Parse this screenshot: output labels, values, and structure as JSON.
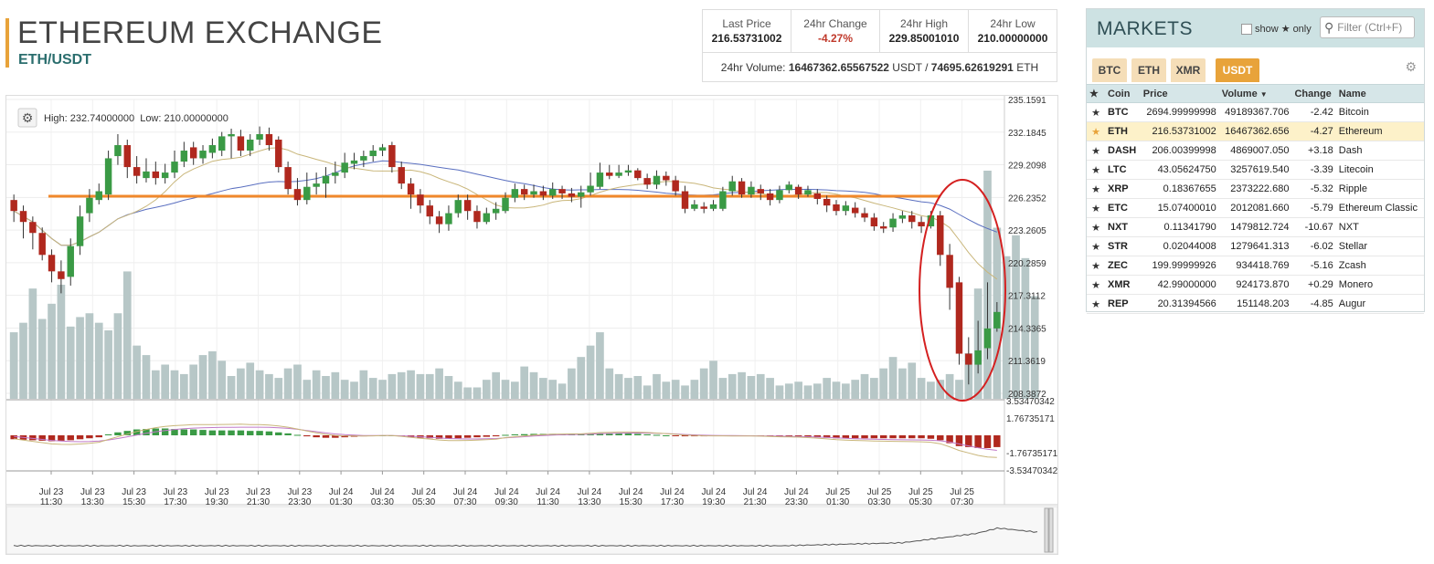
{
  "header": {
    "title": "ETHEREUM EXCHANGE",
    "pair": "ETH/USDT"
  },
  "stats": {
    "last_price_label": "Last Price",
    "last_price": "216.53731002",
    "change_label": "24hr Change",
    "change": "-4.27%",
    "high_label": "24hr High",
    "high": "229.85001010",
    "low_label": "24hr Low",
    "low": "210.00000000",
    "volume_prefix": "24hr Volume: ",
    "volume_usdt": "16467362.65567522",
    "volume_usdt_unit": " USDT / ",
    "volume_eth": "74695.62619291",
    "volume_eth_unit": " ETH"
  },
  "chart": {
    "info": "High: 232.74000000  Low: 210.00000000",
    "price_axis": [
      "235.1591",
      "232.1845",
      "229.2098",
      "226.2352",
      "223.2605",
      "220.2859",
      "217.3112",
      "214.3365",
      "211.3619",
      "208.3872"
    ],
    "macd_axis": [
      "3.53470342",
      "1.76735171",
      "-1.76735171",
      "-3.53470342"
    ],
    "time_labels": [
      [
        "Jul 23",
        "11:30"
      ],
      [
        "Jul 23",
        "13:30"
      ],
      [
        "Jul 23",
        "15:30"
      ],
      [
        "Jul 23",
        "17:30"
      ],
      [
        "Jul 23",
        "19:30"
      ],
      [
        "Jul 23",
        "21:30"
      ],
      [
        "Jul 23",
        "23:30"
      ],
      [
        "Jul 24",
        "01:30"
      ],
      [
        "Jul 24",
        "03:30"
      ],
      [
        "Jul 24",
        "05:30"
      ],
      [
        "Jul 24",
        "07:30"
      ],
      [
        "Jul 24",
        "09:30"
      ],
      [
        "Jul 24",
        "11:30"
      ],
      [
        "Jul 24",
        "13:30"
      ],
      [
        "Jul 24",
        "15:30"
      ],
      [
        "Jul 24",
        "17:30"
      ],
      [
        "Jul 24",
        "19:30"
      ],
      [
        "Jul 24",
        "21:30"
      ],
      [
        "Jul 24",
        "23:30"
      ],
      [
        "Jul 25",
        "01:30"
      ],
      [
        "Jul 25",
        "03:30"
      ],
      [
        "Jul 25",
        "05:30"
      ],
      [
        "Jul 25",
        "07:30"
      ]
    ],
    "colors": {
      "up": "#3a9a45",
      "down": "#b0281e",
      "support_line": "#f0882b",
      "highlight": "#d42020",
      "volume": "#b7c7c7"
    },
    "candles": [
      [
        226.0,
        225.0,
        226.5,
        224.0
      ],
      [
        225.0,
        224.0,
        225.5,
        222.5
      ],
      [
        224.0,
        223.0,
        224.5,
        221.5
      ],
      [
        223.0,
        221.0,
        223.5,
        220.5
      ],
      [
        221.0,
        219.5,
        221.5,
        218.5
      ],
      [
        219.5,
        218.8,
        220.5,
        217.5
      ],
      [
        219.0,
        221.8,
        222.5,
        218.2
      ],
      [
        221.8,
        224.5,
        225.5,
        221.0
      ],
      [
        224.8,
        226.2,
        227.0,
        224.0
      ],
      [
        226.0,
        226.8,
        227.5,
        225.6
      ],
      [
        226.5,
        229.8,
        230.5,
        226.0
      ],
      [
        230.0,
        231.0,
        232.0,
        229.2
      ],
      [
        231.0,
        229.0,
        231.5,
        228.0
      ],
      [
        229.0,
        228.2,
        230.0,
        227.5
      ],
      [
        228.0,
        228.6,
        229.8,
        227.6
      ],
      [
        228.6,
        228.0,
        229.5,
        227.4
      ],
      [
        228.0,
        228.5,
        229.3,
        227.5
      ],
      [
        228.5,
        229.5,
        230.5,
        228.0
      ],
      [
        229.5,
        230.5,
        231.3,
        229.0
      ],
      [
        230.8,
        229.8,
        231.3,
        229.2
      ],
      [
        229.8,
        230.5,
        231.0,
        229.3
      ],
      [
        230.3,
        231.0,
        231.6,
        229.8
      ],
      [
        230.5,
        231.8,
        232.2,
        230.0
      ],
      [
        231.8,
        232.0,
        232.5,
        229.8
      ],
      [
        231.8,
        230.5,
        232.4,
        230.0
      ],
      [
        230.5,
        231.5,
        232.0,
        230.0
      ],
      [
        231.5,
        232.0,
        232.7,
        231.0
      ],
      [
        232.0,
        231.0,
        232.6,
        230.5
      ],
      [
        231.5,
        229.0,
        231.8,
        228.5
      ],
      [
        229.0,
        227.0,
        229.5,
        226.5
      ],
      [
        227.0,
        226.0,
        228.0,
        225.5
      ],
      [
        226.0,
        227.2,
        228.5,
        225.6
      ],
      [
        227.2,
        227.5,
        228.5,
        226.5
      ],
      [
        227.5,
        228.2,
        229.0,
        226.2
      ],
      [
        228.2,
        228.5,
        229.5,
        227.5
      ],
      [
        228.5,
        229.4,
        230.3,
        228.0
      ],
      [
        229.3,
        229.6,
        230.3,
        228.8
      ],
      [
        229.6,
        230.0,
        230.5,
        229.0
      ],
      [
        230.0,
        230.5,
        231.0,
        229.5
      ],
      [
        230.5,
        230.8,
        231.1,
        230.0
      ],
      [
        231.0,
        229.0,
        231.3,
        228.5
      ],
      [
        229.0,
        227.5,
        229.5,
        227.0
      ],
      [
        227.5,
        226.5,
        228.0,
        225.2
      ],
      [
        226.5,
        225.5,
        227.0,
        224.8
      ],
      [
        225.5,
        224.5,
        226.0,
        223.8
      ],
      [
        224.5,
        223.8,
        225.0,
        223.0
      ],
      [
        223.8,
        224.8,
        225.5,
        223.2
      ],
      [
        224.8,
        226.0,
        226.5,
        224.4
      ],
      [
        226.0,
        225.0,
        226.5,
        224.2
      ],
      [
        225.0,
        224.0,
        225.5,
        223.4
      ],
      [
        224.0,
        224.8,
        225.3,
        223.8
      ],
      [
        224.8,
        225.2,
        225.8,
        224.2
      ],
      [
        225.0,
        226.2,
        226.7,
        224.8
      ],
      [
        226.2,
        227.0,
        227.5,
        225.8
      ],
      [
        227.0,
        226.5,
        227.4,
        226.0
      ],
      [
        226.5,
        226.8,
        227.4,
        226.2
      ],
      [
        226.8,
        226.4,
        227.3,
        226.0
      ],
      [
        226.4,
        227.0,
        227.6,
        226.1
      ],
      [
        227.0,
        226.6,
        227.3,
        226.1
      ],
      [
        226.6,
        226.3,
        227.1,
        225.8
      ],
      [
        226.3,
        226.7,
        227.3,
        225.3
      ],
      [
        226.7,
        227.3,
        228.5,
        226.4
      ],
      [
        227.2,
        228.5,
        229.4,
        227.0
      ],
      [
        228.5,
        228.2,
        229.2,
        227.9
      ],
      [
        228.2,
        228.5,
        229.2,
        228.0
      ],
      [
        228.5,
        228.7,
        229.2,
        228.2
      ],
      [
        228.7,
        228.0,
        228.9,
        227.8
      ],
      [
        228.0,
        227.4,
        228.4,
        227.0
      ],
      [
        227.4,
        228.2,
        228.7,
        227.0
      ],
      [
        228.2,
        227.8,
        228.6,
        227.3
      ],
      [
        227.8,
        226.8,
        228.2,
        226.4
      ],
      [
        226.8,
        225.2,
        227.3,
        224.8
      ],
      [
        225.2,
        225.6,
        226.0,
        225.0
      ],
      [
        225.4,
        225.2,
        225.8,
        224.8
      ],
      [
        225.2,
        225.6,
        226.0,
        225.0
      ],
      [
        225.2,
        226.8,
        227.2,
        225.0
      ],
      [
        226.8,
        227.7,
        228.2,
        226.4
      ],
      [
        227.7,
        226.5,
        228.0,
        226.2
      ],
      [
        226.5,
        227.2,
        227.7,
        226.2
      ],
      [
        227.0,
        226.6,
        227.4,
        226.0
      ],
      [
        226.6,
        226.0,
        227.0,
        225.5
      ],
      [
        226.0,
        226.9,
        227.3,
        225.7
      ],
      [
        226.9,
        227.4,
        227.7,
        226.6
      ],
      [
        227.2,
        226.5,
        227.4,
        226.1
      ],
      [
        226.5,
        226.9,
        227.3,
        226.3
      ],
      [
        226.6,
        226.1,
        227.0,
        225.6
      ],
      [
        226.1,
        225.5,
        226.4,
        224.9
      ],
      [
        225.6,
        225.0,
        226.0,
        224.6
      ],
      [
        225.0,
        225.5,
        225.9,
        224.6
      ],
      [
        225.3,
        224.8,
        225.8,
        224.4
      ],
      [
        224.8,
        224.4,
        225.3,
        224.0
      ],
      [
        224.4,
        223.6,
        224.8,
        223.2
      ],
      [
        223.6,
        223.4,
        224.0,
        223.0
      ],
      [
        223.5,
        224.3,
        224.8,
        223.1
      ],
      [
        224.3,
        224.6,
        225.0,
        223.9
      ],
      [
        224.6,
        224.0,
        225.0,
        223.4
      ],
      [
        224.0,
        223.6,
        224.5,
        223.0
      ],
      [
        223.6,
        224.6,
        225.0,
        223.4
      ],
      [
        224.6,
        221.0,
        225.0,
        220.0
      ],
      [
        221.0,
        218.0,
        222.0,
        216.0
      ],
      [
        218.5,
        212.0,
        219.0,
        211.0
      ],
      [
        212.0,
        211.0,
        213.5,
        209.2
      ],
      [
        211.0,
        212.3,
        215.0,
        210.2
      ],
      [
        212.5,
        214.3,
        218.5,
        211.5
      ],
      [
        214.3,
        215.8,
        216.7,
        214.0
      ]
    ],
    "volumes": [
      3.5,
      4.0,
      5.8,
      4.2,
      5.0,
      6.0,
      3.8,
      4.3,
      4.5,
      4.0,
      3.6,
      4.5,
      6.7,
      2.8,
      2.3,
      1.5,
      1.8,
      1.5,
      1.3,
      1.8,
      2.3,
      2.5,
      2.0,
      1.2,
      1.6,
      1.9,
      1.5,
      1.3,
      1.1,
      1.6,
      1.8,
      1.0,
      1.5,
      1.2,
      1.4,
      1.0,
      0.9,
      1.5,
      1.1,
      1.0,
      1.3,
      1.4,
      1.5,
      1.3,
      1.3,
      1.6,
      1.2,
      0.9,
      0.6,
      0.6,
      1.0,
      1.4,
      1.0,
      0.9,
      1.7,
      1.4,
      1.1,
      1.0,
      0.8,
      1.6,
      2.2,
      2.8,
      3.5,
      1.6,
      1.3,
      1.1,
      1.2,
      0.7,
      1.3,
      0.9,
      1.0,
      0.7,
      1.0,
      1.6,
      2.0,
      1.1,
      1.3,
      1.4,
      1.2,
      1.3,
      1.1,
      0.7,
      0.8,
      0.9,
      0.7,
      0.8,
      1.1,
      0.9,
      0.8,
      1.0,
      1.3,
      1.1,
      1.6,
      2.2,
      1.6,
      1.9,
      1.1,
      0.9,
      1.0,
      1.3,
      1.0,
      2.4,
      5.8,
      12.0,
      9.0,
      7.5,
      8.6,
      7.4,
      5.4
    ],
    "macd_hist": [
      -0.4,
      -0.45,
      -0.5,
      -0.55,
      -0.6,
      -0.55,
      -0.5,
      -0.4,
      -0.3,
      -0.2,
      0.1,
      0.3,
      0.45,
      0.6,
      0.65,
      0.7,
      0.7,
      0.65,
      0.6,
      0.6,
      0.55,
      0.5,
      0.5,
      0.5,
      0.5,
      0.45,
      0.45,
      0.4,
      0.3,
      0.2,
      0.05,
      -0.1,
      -0.2,
      -0.25,
      -0.25,
      -0.2,
      -0.15,
      -0.1,
      -0.05,
      0.0,
      0.0,
      -0.1,
      -0.2,
      -0.25,
      -0.3,
      -0.35,
      -0.35,
      -0.3,
      -0.25,
      -0.2,
      -0.15,
      -0.1,
      0.05,
      0.1,
      0.12,
      0.15,
      0.15,
      0.15,
      0.13,
      0.12,
      0.1,
      0.15,
      0.2,
      0.2,
      0.2,
      0.18,
      0.15,
      0.1,
      0.05,
      0.0,
      -0.05,
      -0.1,
      -0.1,
      -0.1,
      -0.08,
      -0.05,
      -0.05,
      -0.05,
      -0.05,
      -0.05,
      -0.08,
      -0.1,
      -0.1,
      -0.12,
      -0.15,
      -0.2,
      -0.25,
      -0.3,
      -0.3,
      -0.3,
      -0.3,
      -0.3,
      -0.3,
      -0.3,
      -0.3,
      -0.3,
      -0.3,
      -0.35,
      -0.5,
      -0.8,
      -1.1,
      -1.2,
      -1.3,
      -1.3,
      -1.2
    ]
  },
  "markets": {
    "title": "MARKETS",
    "show_only_label": "show",
    "show_only_suffix": "only",
    "filter_placeholder": "Filter (Ctrl+F)",
    "tabs": [
      "BTC",
      "ETH",
      "XMR",
      "USDT"
    ],
    "columns": {
      "coin": "Coin",
      "price": "Price",
      "volume": "Volume",
      "change": "Change",
      "name": "Name"
    },
    "rows": [
      {
        "coin": "BTC",
        "price": "2694.99999998",
        "volume": "49189367.706",
        "change": "-2.42",
        "name": "Bitcoin"
      },
      {
        "coin": "ETH",
        "price": "216.53731002",
        "volume": "16467362.656",
        "change": "-4.27",
        "name": "Ethereum"
      },
      {
        "coin": "DASH",
        "price": "206.00399998",
        "volume": "4869007.050",
        "change": "+3.18",
        "name": "Dash"
      },
      {
        "coin": "LTC",
        "price": "43.05624750",
        "volume": "3257619.540",
        "change": "-3.39",
        "name": "Litecoin"
      },
      {
        "coin": "XRP",
        "price": "0.18367655",
        "volume": "2373222.680",
        "change": "-5.32",
        "name": "Ripple"
      },
      {
        "coin": "ETC",
        "price": "15.07400010",
        "volume": "2012081.660",
        "change": "-5.79",
        "name": "Ethereum Classic"
      },
      {
        "coin": "NXT",
        "price": "0.11341790",
        "volume": "1479812.724",
        "change": "-10.67",
        "name": "NXT"
      },
      {
        "coin": "STR",
        "price": "0.02044008",
        "volume": "1279641.313",
        "change": "-6.02",
        "name": "Stellar"
      },
      {
        "coin": "ZEC",
        "price": "199.99999926",
        "volume": "934418.769",
        "change": "-5.16",
        "name": "Zcash"
      },
      {
        "coin": "XMR",
        "price": "42.99000000",
        "volume": "924173.870",
        "change": "+0.29",
        "name": "Monero"
      },
      {
        "coin": "REP",
        "price": "20.31394566",
        "volume": "151148.203",
        "change": "-4.85",
        "name": "Augur"
      }
    ]
  }
}
